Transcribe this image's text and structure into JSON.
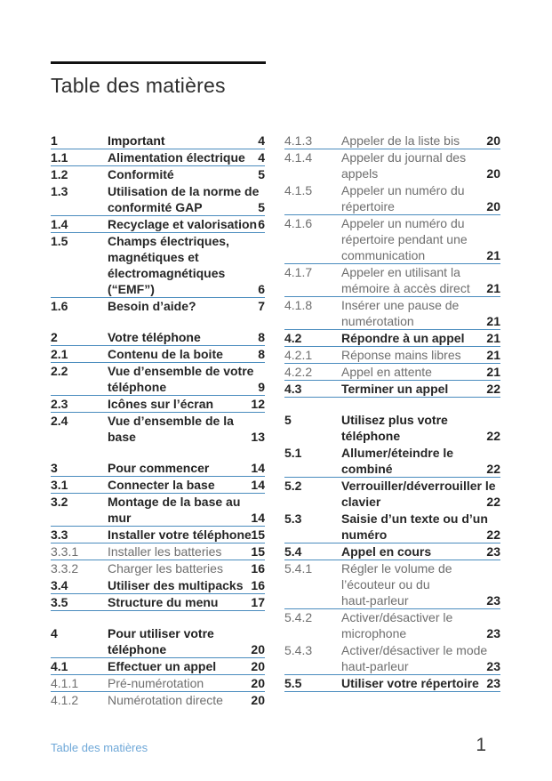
{
  "document": {
    "title": "Table des matières",
    "footer": {
      "section": "Table des matières",
      "page_number": "1"
    }
  },
  "colors": {
    "rule-blue": "#4a8cbe",
    "footer-blue": "#6fa8d8",
    "text-dark": "#1f1f1f",
    "text-gray": "#6e6e6e",
    "title-bar-black": "#121212"
  },
  "toc": {
    "columns": [
      {
        "entries": [
          {
            "num": "1",
            "title": "Important",
            "page": "4",
            "level": 1,
            "rule": true,
            "gap": false
          },
          {
            "num": "1.1",
            "title": "Alimentation électrique",
            "page": "4",
            "level": 2,
            "rule": true,
            "gap": false
          },
          {
            "num": "1.2",
            "title": "Conformité",
            "page": "5",
            "level": 2,
            "rule": false,
            "gap": false
          },
          {
            "num": "1.3",
            "title": "Utilisation de la norme de\nconformité GAP",
            "page": "5",
            "level": 2,
            "rule": true,
            "gap": false
          },
          {
            "num": "1.4",
            "title": "Recyclage et valorisation",
            "page": "6",
            "level": 2,
            "rule": true,
            "gap": false
          },
          {
            "num": "1.5",
            "title": "Champs électriques,\nmagnétiques et\nélectromagnétiques\n(“EMF”)",
            "page": "6",
            "level": 2,
            "rule": true,
            "gap": false
          },
          {
            "num": "1.6",
            "title": "Besoin d’aide?",
            "page": "7",
            "level": 2,
            "rule": false,
            "gap": false
          },
          {
            "num": "2",
            "title": "Votre téléphone",
            "page": "8",
            "level": 1,
            "rule": true,
            "gap": true
          },
          {
            "num": "2.1",
            "title": "Contenu de la boite",
            "page": "8",
            "level": 2,
            "rule": true,
            "gap": false
          },
          {
            "num": "2.2",
            "title": "Vue d’ensemble de votre\ntéléphone",
            "page": "9",
            "level": 2,
            "rule": true,
            "gap": false
          },
          {
            "num": "2.3",
            "title": "Icônes sur l’écran",
            "page": "12",
            "level": 2,
            "rule": true,
            "gap": false
          },
          {
            "num": "2.4",
            "title": "Vue d’ensemble de la\nbase",
            "page": "13",
            "level": 2,
            "rule": false,
            "gap": false
          },
          {
            "num": "3",
            "title": "Pour commencer",
            "page": "14",
            "level": 1,
            "rule": true,
            "gap": true
          },
          {
            "num": "3.1",
            "title": "Connecter la base",
            "page": "14",
            "level": 2,
            "rule": true,
            "gap": false
          },
          {
            "num": "3.2",
            "title": "Montage de la base au\nmur",
            "page": "14",
            "level": 2,
            "rule": true,
            "gap": false
          },
          {
            "num": "3.3",
            "title": "Installer votre téléphone",
            "page": "15",
            "level": 2,
            "rule": true,
            "gap": false
          },
          {
            "num": "3.3.1",
            "title": "Installer les batteries",
            "page": "15",
            "level": 3,
            "rule": true,
            "gap": false
          },
          {
            "num": "3.3.2",
            "title": "Charger les batteries",
            "page": "16",
            "level": 3,
            "rule": false,
            "gap": false
          },
          {
            "num": "3.4",
            "title": "Utiliser des multipacks",
            "page": "16",
            "level": 2,
            "rule": true,
            "gap": false
          },
          {
            "num": "3.5",
            "title": "Structure du menu",
            "page": "17",
            "level": 2,
            "rule": true,
            "gap": false
          },
          {
            "num": "4",
            "title": "Pour utiliser votre\ntéléphone",
            "page": "20",
            "level": 1,
            "rule": true,
            "gap": true
          },
          {
            "num": "4.1",
            "title": "Effectuer un appel",
            "page": "20",
            "level": 2,
            "rule": true,
            "gap": false
          },
          {
            "num": "4.1.1",
            "title": "Pré-numérotation",
            "page": "20",
            "level": 3,
            "rule": true,
            "gap": false
          },
          {
            "num": "4.1.2",
            "title": "Numérotation directe",
            "page": "20",
            "level": 3,
            "rule": false,
            "gap": false
          }
        ]
      },
      {
        "entries": [
          {
            "num": "4.1.3",
            "title": "Appeler de la liste bis",
            "page": "20",
            "level": 3,
            "rule": true,
            "gap": false
          },
          {
            "num": "4.1.4",
            "title": "Appeler du journal des\nappels",
            "page": "20",
            "level": 3,
            "rule": false,
            "gap": false
          },
          {
            "num": "4.1.5",
            "title": "Appeler un numéro du\nrépertoire",
            "page": "20",
            "level": 3,
            "rule": true,
            "gap": false
          },
          {
            "num": "4.1.6",
            "title": "Appeler un numéro du\nrépertoire pendant une\ncommunication",
            "page": "21",
            "level": 3,
            "rule": true,
            "gap": false
          },
          {
            "num": "4.1.7",
            "title": "Appeler en utilisant la\nmémoire à accès direct",
            "page": "21",
            "level": 3,
            "rule": true,
            "gap": false
          },
          {
            "num": "4.1.8",
            "title": "Insérer une pause de\nnumérotation",
            "page": "21",
            "level": 3,
            "rule": true,
            "gap": false
          },
          {
            "num": "4.2",
            "title": "Répondre à un appel",
            "page": "21",
            "level": 2,
            "rule": true,
            "gap": false
          },
          {
            "num": "4.2.1",
            "title": "Réponse mains libres",
            "page": "21",
            "level": 3,
            "rule": true,
            "gap": false
          },
          {
            "num": "4.2.2",
            "title": "Appel en attente",
            "page": "21",
            "level": 3,
            "rule": true,
            "gap": false
          },
          {
            "num": "4.3",
            "title": "Terminer un appel",
            "page": "22",
            "level": 2,
            "rule": true,
            "gap": false
          },
          {
            "num": "5",
            "title": "Utilisez plus votre\ntéléphone",
            "page": "22",
            "level": 1,
            "rule": false,
            "gap": true
          },
          {
            "num": "5.1",
            "title": "Allumer/éteindre le\ncombiné",
            "page": "22",
            "level": 2,
            "rule": true,
            "gap": false
          },
          {
            "num": "5.2",
            "title": "Verrouiller/déverrouiller le\nclavier",
            "page": "22",
            "level": 2,
            "rule": false,
            "gap": false
          },
          {
            "num": "5.3",
            "title": "Saisie d’un texte ou d’un\nnuméro",
            "page": "22",
            "level": 2,
            "rule": true,
            "gap": false
          },
          {
            "num": "5.4",
            "title": "Appel en cours",
            "page": "23",
            "level": 2,
            "rule": true,
            "gap": false
          },
          {
            "num": "5.4.1",
            "title": "Régler le volume de\nl’écouteur ou du\nhaut-parleur",
            "page": "23",
            "level": 3,
            "rule": true,
            "gap": false
          },
          {
            "num": "5.4.2",
            "title": "Activer/désactiver le\nmicrophone",
            "page": "23",
            "level": 3,
            "rule": false,
            "gap": false
          },
          {
            "num": "5.4.3",
            "title": "Activer/désactiver le mode\nhaut-parleur",
            "page": "23",
            "level": 3,
            "rule": true,
            "gap": false
          },
          {
            "num": "5.5",
            "title": "Utiliser votre répertoire",
            "page": "23",
            "level": 2,
            "rule": true,
            "gap": false
          }
        ]
      }
    ]
  }
}
